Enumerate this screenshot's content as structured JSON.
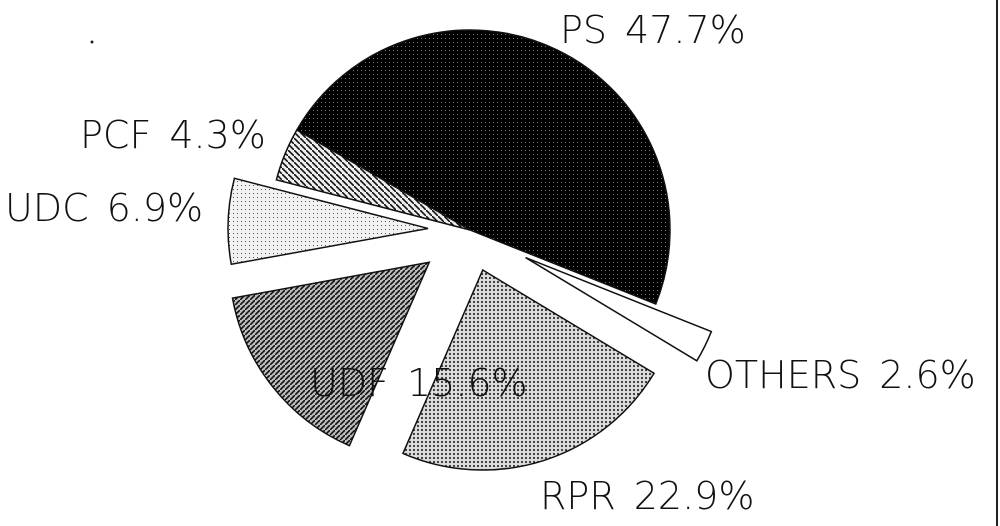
{
  "chart_data": {
    "type": "pie",
    "categories": [
      "PS",
      "OTHERS",
      "RPR",
      "UDF",
      "UDC",
      "PCF"
    ],
    "values": [
      47.7,
      2.6,
      22.9,
      15.6,
      6.9,
      4.3
    ],
    "value_labels": [
      "47.7%",
      "2.6%",
      "22.9%",
      "15.6%",
      "6.9%",
      "4.3%"
    ]
  }
}
